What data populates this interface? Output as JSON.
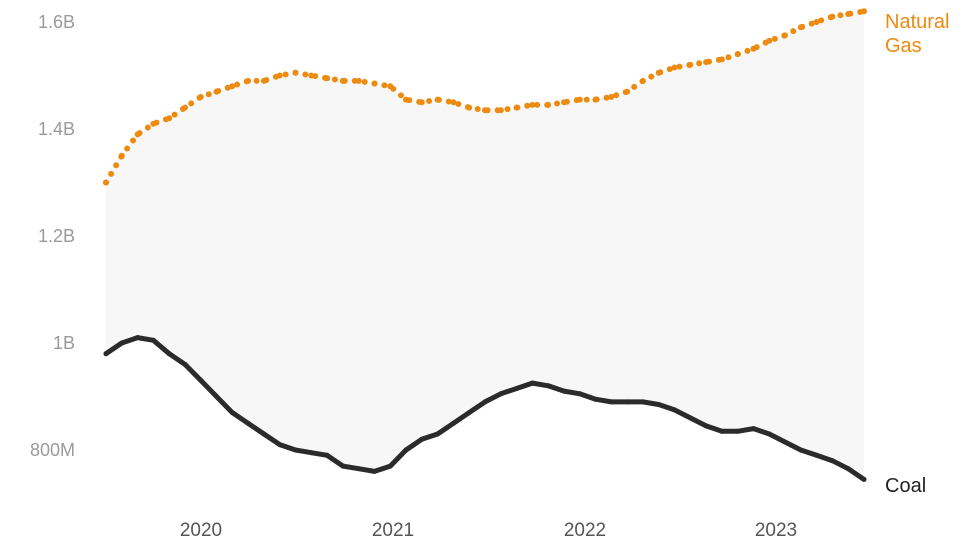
{
  "chart_data": {
    "type": "line",
    "title": "",
    "xlabel": "",
    "ylabel": "",
    "x_ticks": [
      "2020",
      "2021",
      "2022",
      "2023"
    ],
    "y_ticks": [
      "800M",
      "1B",
      "1.2B",
      "1.4B",
      "1.6B"
    ],
    "ylim": [
      0.74,
      1.62
    ],
    "grid": false,
    "x": [
      "2019-07",
      "2019-08",
      "2019-09",
      "2019-10",
      "2019-11",
      "2019-12",
      "2020-01",
      "2020-02",
      "2020-03",
      "2020-04",
      "2020-05",
      "2020-06",
      "2020-07",
      "2020-08",
      "2020-09",
      "2020-10",
      "2020-11",
      "2020-12",
      "2021-01",
      "2021-02",
      "2021-03",
      "2021-04",
      "2021-05",
      "2021-06",
      "2021-07",
      "2021-08",
      "2021-09",
      "2021-10",
      "2021-11",
      "2021-12",
      "2022-01",
      "2022-02",
      "2022-03",
      "2022-04",
      "2022-05",
      "2022-06",
      "2022-07",
      "2022-08",
      "2022-09",
      "2022-10",
      "2022-11",
      "2022-12",
      "2023-01",
      "2023-02",
      "2023-03",
      "2023-04",
      "2023-05",
      "2023-06",
      "2023-07"
    ],
    "series": [
      {
        "name": "Natural Gas",
        "color": "#ec8b10",
        "style": "dotted",
        "values": [
          1.3,
          1.35,
          1.39,
          1.41,
          1.42,
          1.44,
          1.46,
          1.47,
          1.48,
          1.49,
          1.49,
          1.5,
          1.505,
          1.5,
          1.495,
          1.49,
          1.49,
          1.485,
          1.48,
          1.455,
          1.45,
          1.455,
          1.45,
          1.44,
          1.435,
          1.435,
          1.44,
          1.445,
          1.445,
          1.45,
          1.455,
          1.455,
          1.46,
          1.47,
          1.49,
          1.505,
          1.515,
          1.52,
          1.525,
          1.53,
          1.54,
          1.55,
          1.565,
          1.575,
          1.59,
          1.6,
          1.61,
          1.615,
          1.62
        ]
      },
      {
        "name": "Coal",
        "color": "#2b2b2b",
        "style": "solid",
        "values": [
          0.98,
          1.0,
          1.01,
          1.005,
          0.98,
          0.96,
          0.93,
          0.9,
          0.87,
          0.85,
          0.83,
          0.81,
          0.8,
          0.795,
          0.79,
          0.77,
          0.765,
          0.76,
          0.77,
          0.8,
          0.82,
          0.83,
          0.85,
          0.87,
          0.89,
          0.905,
          0.915,
          0.925,
          0.92,
          0.91,
          0.905,
          0.895,
          0.89,
          0.89,
          0.89,
          0.885,
          0.875,
          0.86,
          0.845,
          0.835,
          0.835,
          0.84,
          0.83,
          0.815,
          0.8,
          0.79,
          0.78,
          0.765,
          0.745
        ]
      }
    ]
  }
}
